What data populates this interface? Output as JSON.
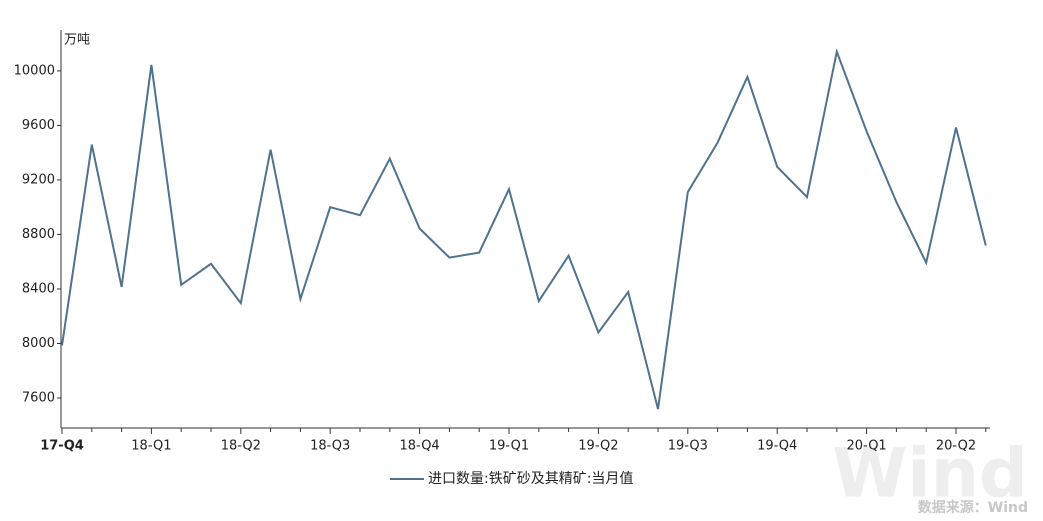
{
  "chart_data": {
    "type": "line",
    "y_unit": "万吨",
    "categories": [
      "17-Q4",
      null,
      null,
      "18-Q1",
      null,
      null,
      "18-Q2",
      null,
      null,
      "18-Q3",
      null,
      null,
      "18-Q4",
      null,
      null,
      "19-Q1",
      null,
      null,
      "19-Q2",
      null,
      null,
      "19-Q3",
      null,
      null,
      "19-Q4",
      null,
      null,
      "20-Q1",
      null,
      null,
      "20-Q2",
      null
    ],
    "series": [
      {
        "name": "进口数量:铁矿砂及其精矿:当月值",
        "color": "#4f7290",
        "values": [
          7985,
          9459,
          8415,
          10044,
          8430,
          8585,
          8296,
          9422,
          8326,
          9000,
          8941,
          9356,
          8844,
          8630,
          8667,
          9133,
          8311,
          8644,
          8081,
          8378,
          7519,
          9111,
          9474,
          9956,
          9296,
          9074,
          10141,
          9556,
          9037,
          8593,
          9585,
          8719
        ]
      }
    ],
    "ylim": [
      7380,
      10300
    ],
    "yticks": [
      7600,
      8000,
      8400,
      8800,
      9200,
      9600,
      10000
    ],
    "grid": false,
    "legend": "bottom",
    "watermark": "Wind",
    "source": "数据来源：Wind"
  }
}
